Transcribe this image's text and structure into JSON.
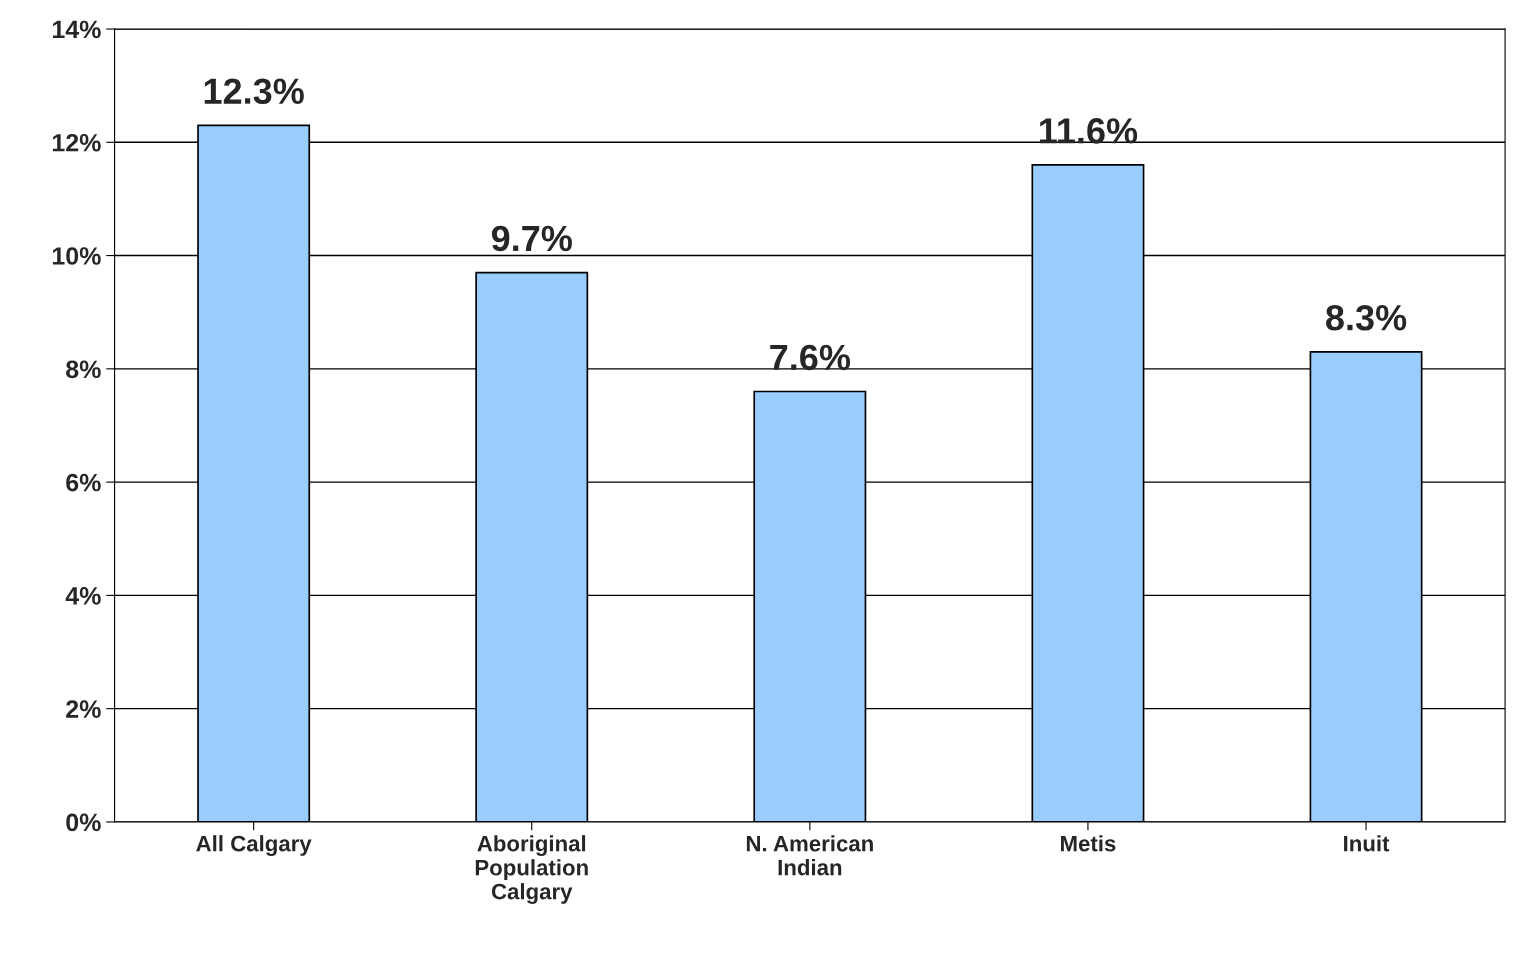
{
  "chart_data": {
    "type": "bar",
    "categories": [
      "All Calgary",
      "Aboriginal\nPopulation\nCalgary",
      "N. American\nIndian",
      "Metis",
      "Inuit"
    ],
    "values": [
      12.3,
      9.7,
      7.6,
      11.6,
      8.3
    ],
    "value_labels": [
      "12.3%",
      "9.7%",
      "7.6%",
      "11.6%",
      "8.3%"
    ],
    "color": "#99ccff",
    "ylim": [
      0,
      14
    ],
    "yticks": [
      {
        "value": 0,
        "label": "0%"
      },
      {
        "value": 2,
        "label": "2%"
      },
      {
        "value": 4,
        "label": "4%"
      },
      {
        "value": 6,
        "label": "6%"
      },
      {
        "value": 8,
        "label": "8%"
      },
      {
        "value": 10,
        "label": "10%"
      },
      {
        "value": 12,
        "label": "12%"
      },
      {
        "value": 14,
        "label": "14%"
      }
    ],
    "grid": "y"
  }
}
